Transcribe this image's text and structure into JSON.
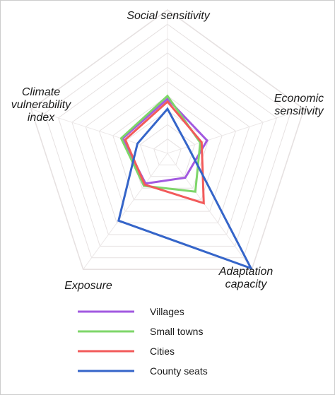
{
  "chart_data": {
    "type": "radar",
    "axes": [
      "Social sensitivity",
      "Economic sensitivity",
      "Adaptation capacity",
      "Exposure",
      "Climate vulnerability index"
    ],
    "axis_label_lines": [
      [
        "Social sensitivity"
      ],
      [
        "Economic",
        "sensitivity"
      ],
      [
        "Adaptation",
        "capacity"
      ],
      [
        "Exposure"
      ],
      [
        "Climate",
        "vulnerability",
        "index"
      ]
    ],
    "rlim": [
      0,
      1
    ],
    "grid": true,
    "legend_position": "bottom",
    "series": [
      {
        "name": "Villages",
        "color": "#a259e0",
        "values": [
          0.38,
          0.29,
          0.21,
          0.26,
          0.33
        ]
      },
      {
        "name": "Small towns",
        "color": "#7ed66a",
        "values": [
          0.4,
          0.24,
          0.33,
          0.28,
          0.34
        ]
      },
      {
        "name": "Cities",
        "color": "#f25a5a",
        "values": [
          0.36,
          0.25,
          0.43,
          0.27,
          0.31
        ]
      },
      {
        "name": "County seats",
        "color": "#3565c9",
        "values": [
          0.31,
          0.15,
          0.99,
          0.58,
          0.22
        ]
      }
    ]
  }
}
